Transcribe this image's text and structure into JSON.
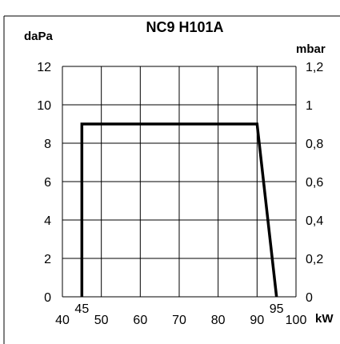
{
  "chart_data": {
    "type": "line",
    "title": "NC9 H101A",
    "ylabel_left": "daPa",
    "ylabel_right": "mbar",
    "xlabel": "kW",
    "xlim": [
      40,
      100
    ],
    "ylim": [
      0,
      12
    ],
    "grid": true,
    "x_ticks": [
      40,
      50,
      60,
      70,
      80,
      90,
      100
    ],
    "x_ticks_labels": [
      "40",
      "50",
      "60",
      "70",
      "80",
      "90",
      "100"
    ],
    "x_marks": [
      45,
      95
    ],
    "x_mark_labels": [
      "45",
      "95"
    ],
    "y_left_ticks": [
      0,
      2,
      4,
      6,
      8,
      10,
      12
    ],
    "y_left_labels": [
      "0",
      "2",
      "4",
      "6",
      "8",
      "10",
      "12"
    ],
    "y_right_labels": [
      "0",
      "0,2",
      "0,4",
      "0,6",
      "0,8",
      "1",
      "1,2"
    ],
    "series": [
      {
        "x": [
          45,
          45,
          90,
          95
        ],
        "y": [
          0,
          9,
          9,
          0
        ]
      }
    ]
  }
}
